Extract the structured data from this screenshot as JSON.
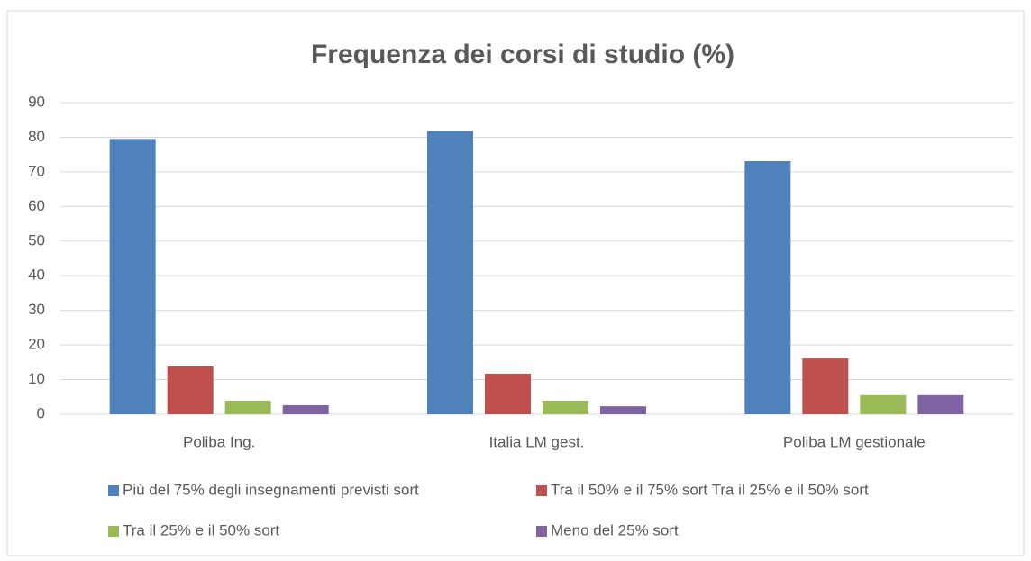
{
  "chart_data": {
    "type": "bar",
    "title": "Frequenza dei corsi di studio (%)",
    "categories": [
      "Poliba Ing.",
      "Italia LM gest.",
      "Poliba LM gestionale"
    ],
    "series": [
      {
        "name": "Più del 75% degli insegnamenti previsti sort",
        "color": "#4f81bd",
        "values": [
          79.5,
          81.8,
          73.1
        ]
      },
      {
        "name": "Tra il 50% e il 75% sort Tra il 25% e il 50% sort",
        "color": "#c0504d",
        "values": [
          13.8,
          11.7,
          16.1
        ]
      },
      {
        "name": "Tra il 25% e il 50% sort",
        "color": "#9bbb59",
        "values": [
          3.9,
          3.9,
          5.5
        ]
      },
      {
        "name": "Meno del 25% sort",
        "color": "#8064a2",
        "values": [
          2.6,
          2.3,
          5.5
        ]
      }
    ],
    "ylim": [
      0,
      90
    ],
    "yticks": [
      0,
      10,
      20,
      30,
      40,
      50,
      60,
      70,
      80,
      90
    ],
    "grid": true,
    "legend": "bottom"
  }
}
